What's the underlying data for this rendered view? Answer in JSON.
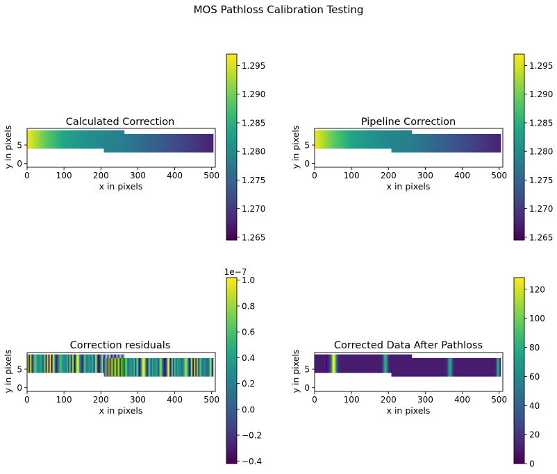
{
  "figure": {
    "title": "MOS Pathloss Calibration Testing"
  },
  "chart_data": [
    {
      "type": "heatmap",
      "title": "Calculated Correction",
      "xlabel": "x in pixels",
      "ylabel": "y in pixels",
      "xlim": [
        0,
        510
      ],
      "ylim": [
        -1,
        9.5
      ],
      "xticks": [
        0,
        100,
        200,
        300,
        400,
        500
      ],
      "yticks": [
        0,
        5
      ],
      "colormap": "viridis",
      "colorbar": {
        "min": 1.2645,
        "max": 1.297,
        "ticks": [
          1.265,
          1.27,
          1.275,
          1.28,
          1.285,
          1.29,
          1.295
        ],
        "labels": [
          "1.265",
          "1.270",
          "1.275",
          "1.280",
          "1.285",
          "1.290",
          "1.295"
        ],
        "offset": ""
      },
      "pattern": "gradient",
      "gradient_stops": [
        [
          0,
          1.2965
        ],
        [
          50,
          1.289
        ],
        [
          100,
          1.2835
        ],
        [
          150,
          1.281
        ],
        [
          200,
          1.2795
        ],
        [
          264,
          1.278
        ],
        [
          300,
          1.2765
        ],
        [
          400,
          1.272
        ],
        [
          505,
          1.2675
        ]
      ],
      "regions": [
        {
          "x": [
            0,
            264
          ],
          "y": [
            4,
            9
          ]
        },
        {
          "x": [
            208,
            505
          ],
          "y": [
            3,
            8
          ]
        }
      ]
    },
    {
      "type": "heatmap",
      "title": "Pipeline Correction",
      "xlabel": "x in pixels",
      "ylabel": "y in pixels",
      "xlim": [
        0,
        510
      ],
      "ylim": [
        -1,
        9.5
      ],
      "xticks": [
        0,
        100,
        200,
        300,
        400,
        500
      ],
      "yticks": [
        0,
        5
      ],
      "colormap": "viridis",
      "colorbar": {
        "min": 1.2645,
        "max": 1.297,
        "ticks": [
          1.265,
          1.27,
          1.275,
          1.28,
          1.285,
          1.29,
          1.295
        ],
        "labels": [
          "1.265",
          "1.270",
          "1.275",
          "1.280",
          "1.285",
          "1.290",
          "1.295"
        ],
        "offset": ""
      },
      "pattern": "gradient",
      "gradient_stops": [
        [
          0,
          1.2965
        ],
        [
          50,
          1.289
        ],
        [
          100,
          1.2835
        ],
        [
          150,
          1.281
        ],
        [
          200,
          1.2795
        ],
        [
          264,
          1.278
        ],
        [
          300,
          1.2765
        ],
        [
          400,
          1.272
        ],
        [
          505,
          1.2675
        ]
      ],
      "regions": [
        {
          "x": [
            0,
            264
          ],
          "y": [
            4,
            9
          ]
        },
        {
          "x": [
            208,
            505
          ],
          "y": [
            3,
            8
          ]
        }
      ]
    },
    {
      "type": "heatmap",
      "title": "Correction residuals",
      "xlabel": "x in pixels",
      "ylabel": "y in pixels",
      "xlim": [
        0,
        510
      ],
      "ylim": [
        -1,
        9.5
      ],
      "xticks": [
        0,
        100,
        200,
        300,
        400,
        500
      ],
      "yticks": [
        0,
        5
      ],
      "colormap": "viridis",
      "colorbar": {
        "min": -0.42,
        "max": 1.02,
        "ticks": [
          -0.4,
          -0.2,
          0.0,
          0.2,
          0.4,
          0.6,
          0.8,
          1.0
        ],
        "labels": [
          "−0.4",
          "−0.2",
          "0.0",
          "0.2",
          "0.4",
          "0.6",
          "0.8",
          "1.0"
        ],
        "offset": "1e−7"
      },
      "pattern": "stripes",
      "regions": [
        {
          "x": [
            0,
            264
          ],
          "y": [
            4,
            9
          ]
        },
        {
          "x": [
            208,
            505
          ],
          "y": [
            3,
            8
          ]
        }
      ]
    },
    {
      "type": "heatmap",
      "title": "Corrected Data After Pathloss",
      "xlabel": "x in pixels",
      "ylabel": "y in pixels",
      "xlim": [
        0,
        510
      ],
      "ylim": [
        -1,
        9.5
      ],
      "xticks": [
        0,
        100,
        200,
        300,
        400,
        500
      ],
      "yticks": [
        0,
        5
      ],
      "colormap": "viridis",
      "colorbar": {
        "min": 0,
        "max": 128,
        "ticks": [
          0,
          20,
          40,
          60,
          80,
          100,
          120
        ],
        "labels": [
          "0",
          "20",
          "40",
          "60",
          "80",
          "100",
          "120"
        ],
        "offset": ""
      },
      "pattern": "lines",
      "background": 10,
      "emission_lines": [
        {
          "x": 52,
          "width": 5,
          "peak": 125
        },
        {
          "x": 192,
          "width": 4,
          "peak": 75
        },
        {
          "x": 367,
          "width": 4,
          "peak": 70
        },
        {
          "x": 497,
          "width": 2.5,
          "peak": 75
        }
      ],
      "dips": [
        {
          "x": 32,
          "width": 1.2,
          "value": 1
        }
      ],
      "regions": [
        {
          "x": [
            0,
            264
          ],
          "y": [
            4,
            9
          ]
        },
        {
          "x": [
            208,
            505
          ],
          "y": [
            3,
            8
          ]
        }
      ]
    }
  ]
}
